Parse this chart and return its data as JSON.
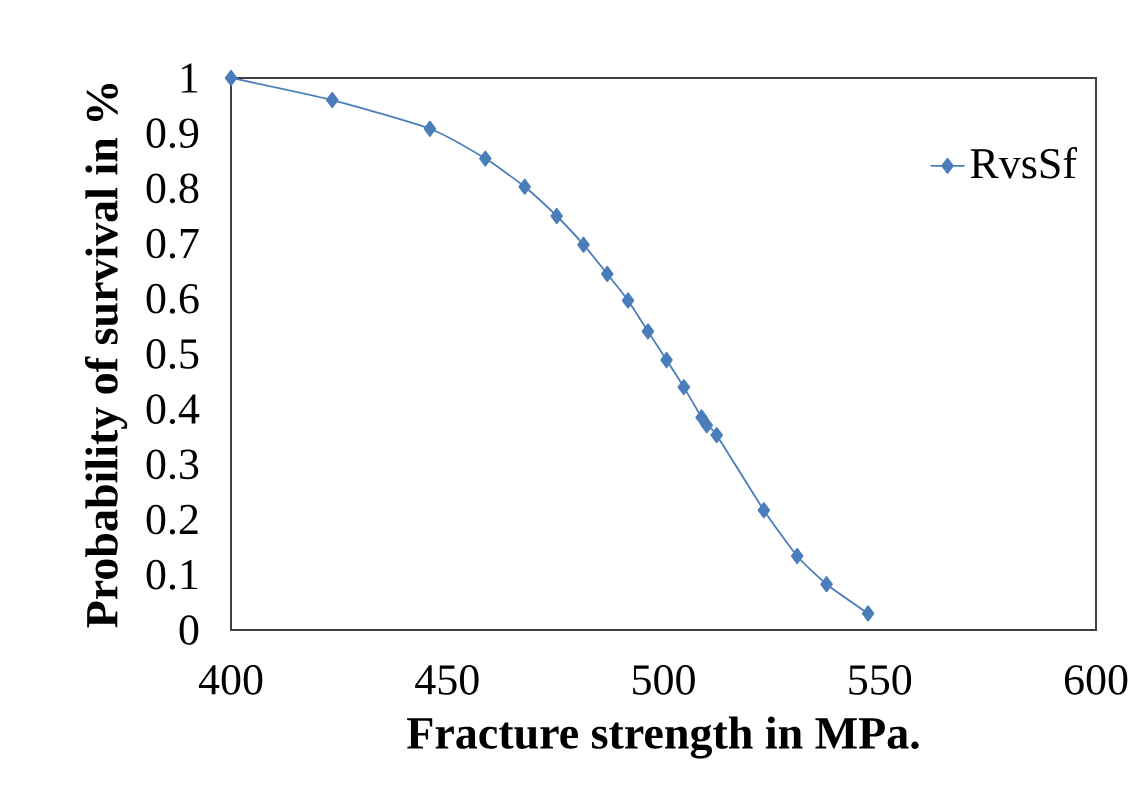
{
  "chart_data": {
    "type": "line",
    "xlabel": "Fracture strength in MPa.",
    "ylabel": "Probability of survival in %",
    "x": [
      400,
      423.4,
      446.0,
      458.8,
      467.9,
      475.3,
      481.5,
      487.0,
      491.8,
      496.4,
      500.7,
      504.7,
      508.8,
      510.0,
      512.3,
      523.2,
      530.9,
      537.7,
      547.3
    ],
    "series": [
      {
        "name": "RvsSf",
        "color": "#4a7ebb",
        "values": [
          1,
          0.96,
          0.908,
          0.854,
          0.803,
          0.75,
          0.698,
          0.645,
          0.597,
          0.541,
          0.489,
          0.44,
          0.385,
          0.371,
          0.353,
          0.217,
          0.134,
          0.083,
          0.03
        ]
      }
    ],
    "xlim": [
      400,
      600
    ],
    "xticks": [
      400,
      450,
      500,
      550,
      600
    ],
    "ylim": [
      0,
      1
    ],
    "yticks": [
      0,
      0.1,
      0.2,
      0.3,
      0.4,
      0.5,
      0.6,
      0.7,
      0.8,
      0.9,
      1
    ],
    "marker": "diamond",
    "line_style": "solid",
    "legend": "top right",
    "grid": false
  }
}
